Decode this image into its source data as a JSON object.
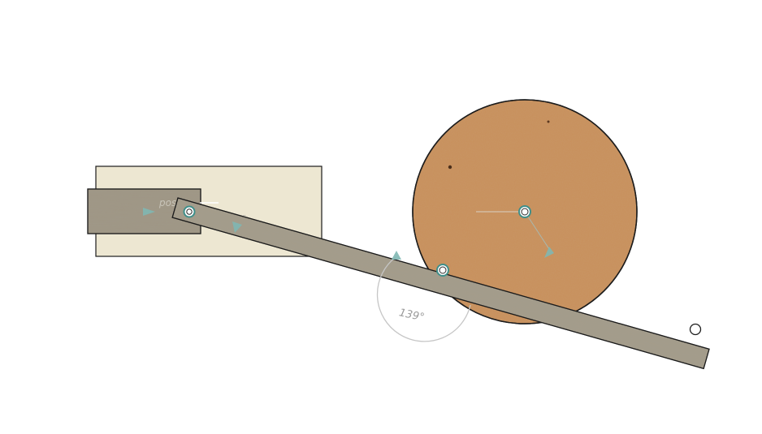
{
  "scene": {
    "angle_label": "139°",
    "ghost_label_left": "pos",
    "ghost_label_right": "s",
    "colors": {
      "background": "#ffffff",
      "base_plate": "#ede7d2",
      "slider_block": "#9f9684",
      "link_bar": "#a49c8a",
      "disc": "#c98f5a",
      "outline": "#1c1c1c",
      "joint_ring": "#3f8f8a",
      "constraint_marker": "#7fb7b2",
      "dimension_line": "#bdbdbd"
    },
    "components": [
      {
        "name": "base-plate"
      },
      {
        "name": "slider-block"
      },
      {
        "name": "connecting-link"
      },
      {
        "name": "crank-disc"
      }
    ],
    "joints": [
      {
        "name": "slider-pivot-joint"
      },
      {
        "name": "link-mid-joint"
      },
      {
        "name": "disc-center-joint"
      },
      {
        "name": "link-end-hole"
      }
    ],
    "icons": [
      "triangle-marker-icon"
    ]
  }
}
